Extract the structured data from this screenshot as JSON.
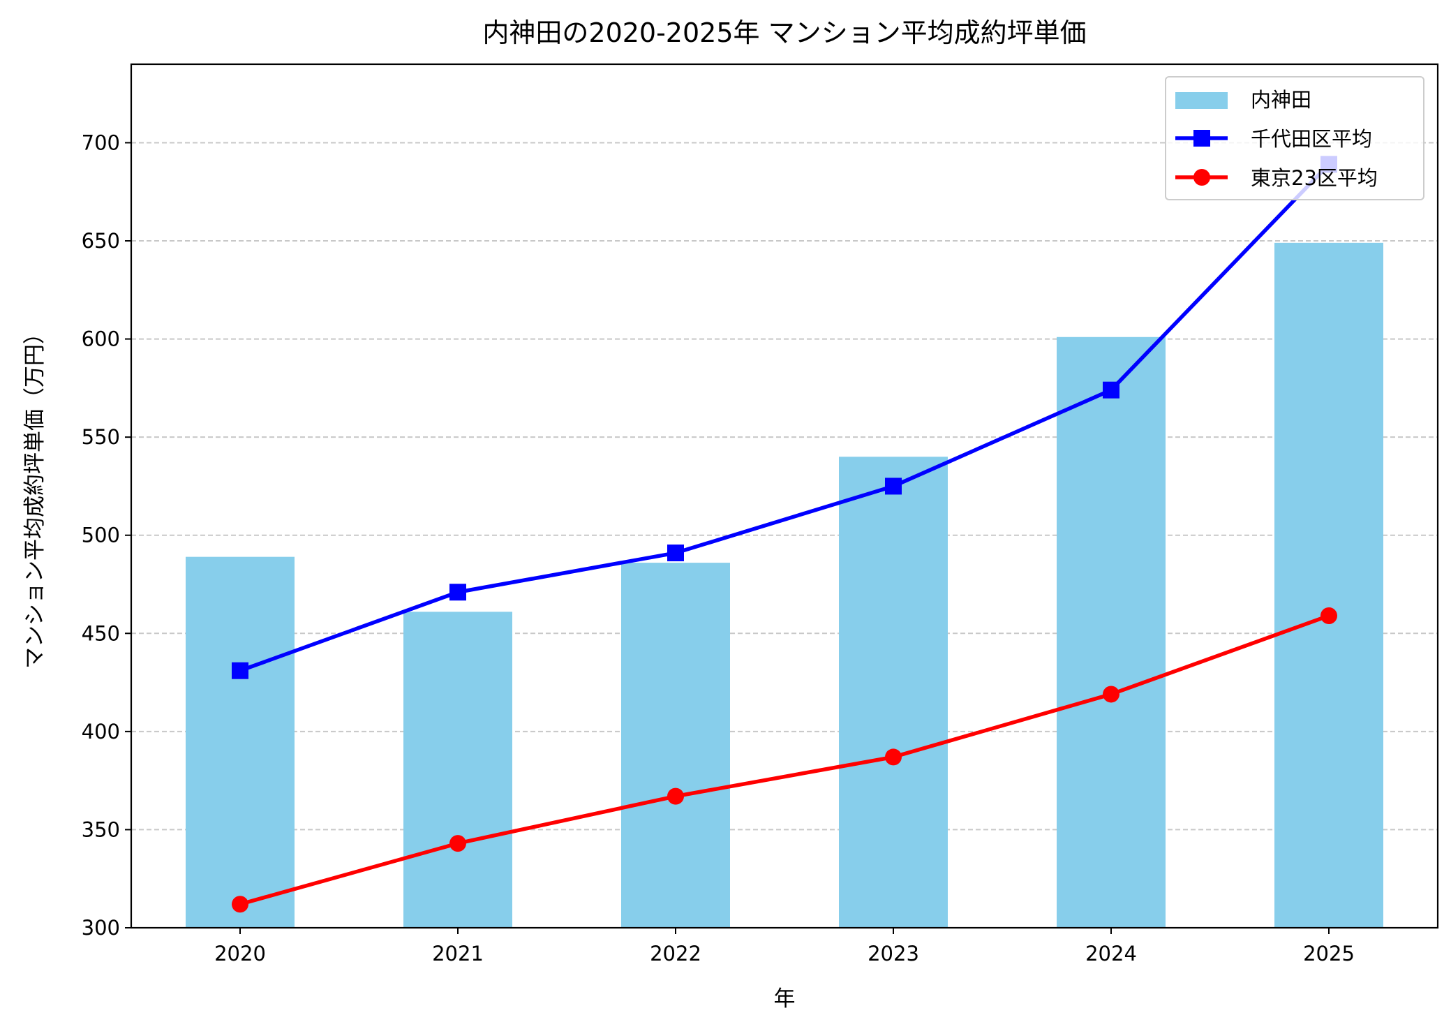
{
  "chart_data": {
    "type": "bar+line",
    "title": "内神田の2020-2025年 マンション平均成約坪単価",
    "xlabel": "年",
    "ylabel": "マンション平均成約坪単価（万円）",
    "categories": [
      "2020",
      "2021",
      "2022",
      "2023",
      "2024",
      "2025"
    ],
    "ylim": [
      300,
      740
    ],
    "yticks": [
      300,
      350,
      400,
      450,
      500,
      550,
      600,
      650,
      700
    ],
    "grid": "y-dashed",
    "legend_position": "top-right",
    "series": [
      {
        "name": "内神田",
        "kind": "bar",
        "color": "#87CEEB",
        "values": [
          489,
          461,
          486,
          540,
          601,
          649
        ]
      },
      {
        "name": "千代田区平均",
        "kind": "line",
        "marker": "square",
        "color": "#0000FF",
        "values": [
          431,
          471,
          491,
          525,
          574,
          689
        ]
      },
      {
        "name": "東京23区平均",
        "kind": "line",
        "marker": "circle",
        "color": "#FF0000",
        "values": [
          312,
          343,
          367,
          387,
          419,
          459
        ]
      }
    ]
  }
}
